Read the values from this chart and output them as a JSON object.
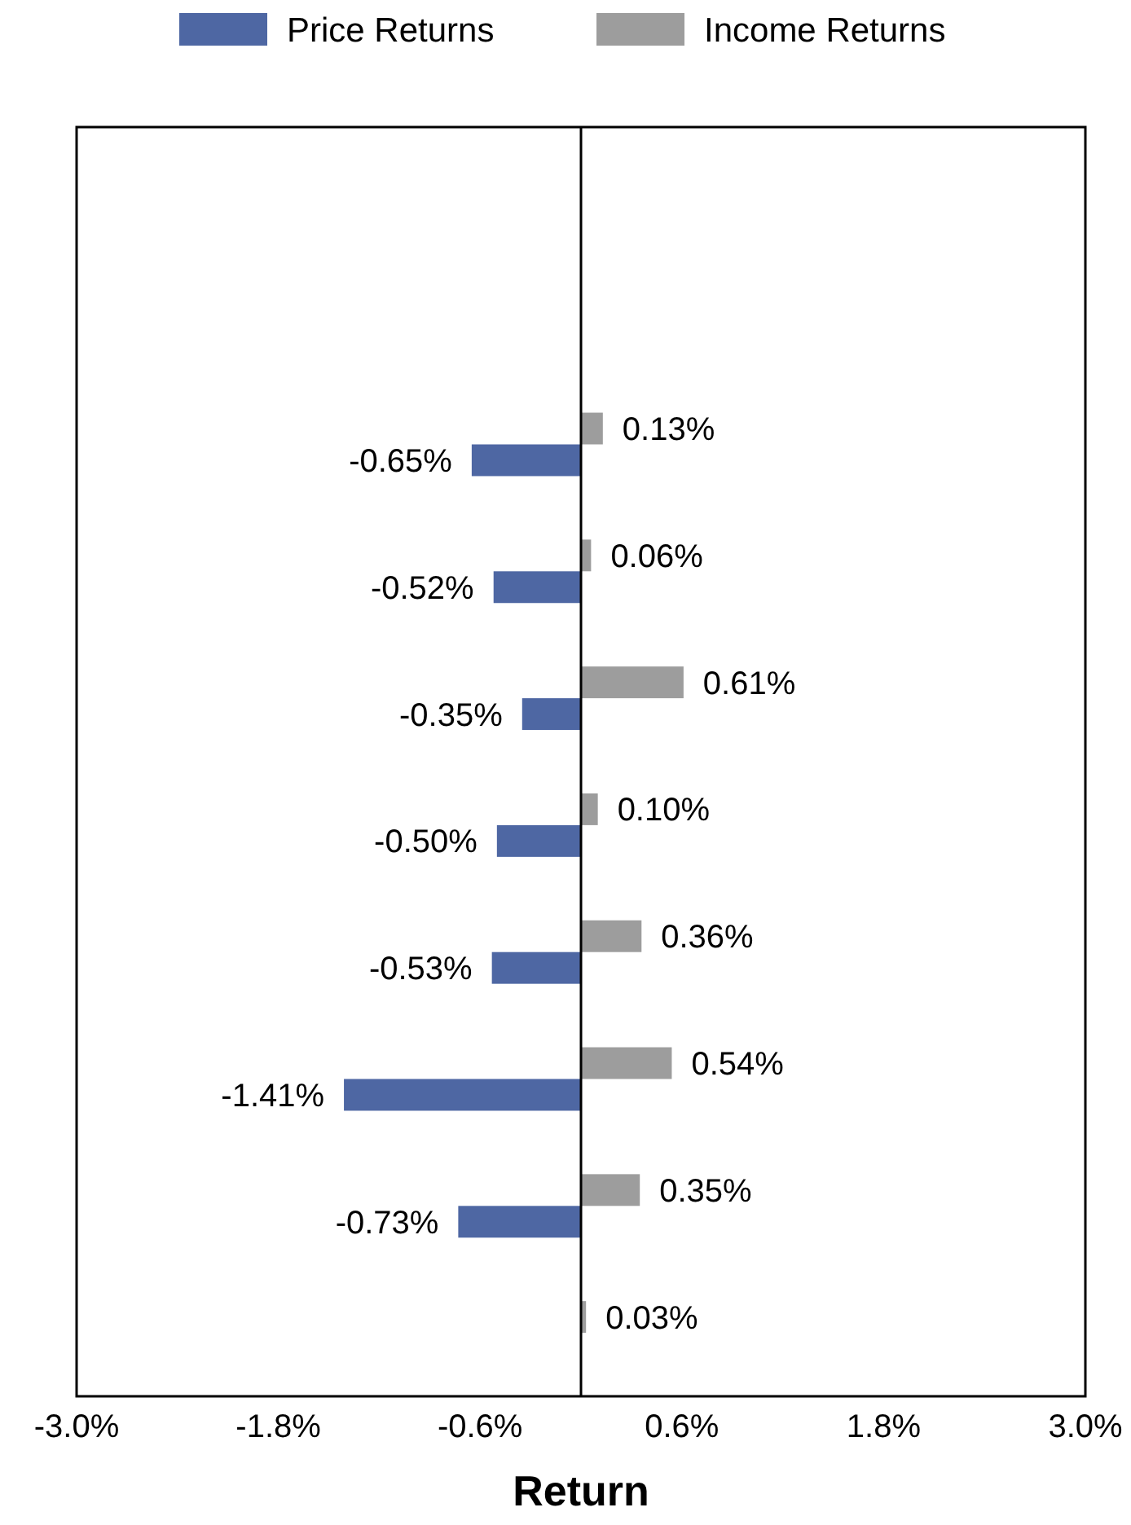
{
  "chart_data": {
    "type": "bar",
    "orientation": "horizontal",
    "xlabel": "Return",
    "categories": [
      null,
      null,
      null,
      null,
      null,
      null,
      null,
      null,
      null,
      null
    ],
    "series": [
      {
        "name": "Price Returns",
        "color": "#4e67a3",
        "values": [
          null,
          null,
          -0.65,
          -0.52,
          -0.35,
          -0.5,
          -0.53,
          -1.41,
          -0.73,
          null
        ],
        "value_labels": [
          null,
          null,
          "-0.65%",
          "-0.52%",
          "-0.35%",
          "-0.50%",
          "-0.53%",
          "-1.41%",
          "-0.73%",
          null
        ]
      },
      {
        "name": "Income Returns",
        "color": "#9d9d9d",
        "values": [
          null,
          null,
          0.13,
          0.06,
          0.61,
          0.1,
          0.36,
          0.54,
          0.35,
          0.03
        ],
        "value_labels": [
          null,
          null,
          "0.13%",
          "0.06%",
          "0.61%",
          "0.10%",
          "0.36%",
          "0.54%",
          "0.35%",
          "0.03%"
        ]
      }
    ],
    "xlim": [
      -3,
      3
    ],
    "xticks": [
      {
        "value": -3,
        "label": "-3.0%"
      },
      {
        "value": -1.8,
        "label": "-1.8%"
      },
      {
        "value": -0.6,
        "label": "-0.6%"
      },
      {
        "value": 0.6,
        "label": "0.6%"
      },
      {
        "value": 1.8,
        "label": "1.8%"
      },
      {
        "value": 3,
        "label": "3.0%"
      }
    ],
    "legend": "top",
    "grid": false
  }
}
